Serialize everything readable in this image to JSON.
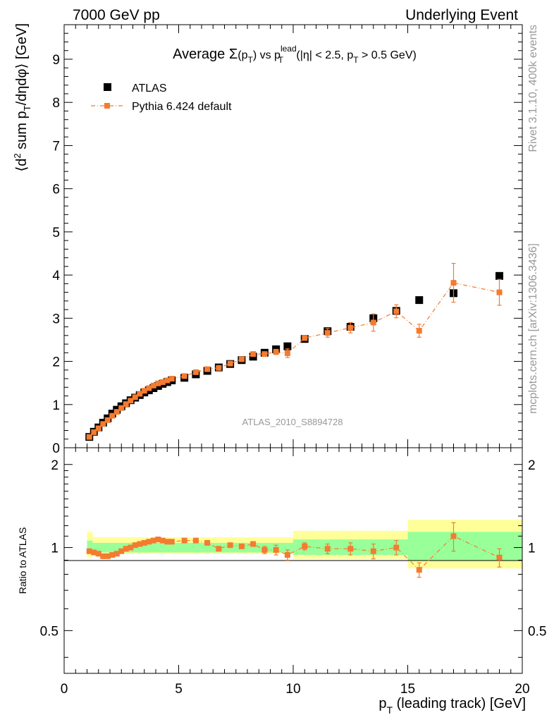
{
  "header": {
    "left": "7000 GeV pp",
    "right": "Underlying Event"
  },
  "side_labels": {
    "rivet": "Rivet 3.1.10,  400k events",
    "mcplots": "mcplots.cern.ch [arXiv:1306.3436]"
  },
  "analysis_label": "ATLAS_2010_S8894728",
  "colors": {
    "atlas": "#000000",
    "pythia": "#f47b30",
    "band_inner": "#99ff99",
    "band_outer": "#ffff99",
    "ratio_label_grey": "#999999"
  },
  "chart_data": [
    {
      "type": "scatter",
      "panel": "main",
      "title_parts": {
        "pre": "Average ",
        "sigma": "Σ",
        "pt_open": "(p",
        "pt_sub": "T",
        "pt_close": ")",
        "vs": " vs p",
        "vs_sup": "lead",
        "vs_sub": "T",
        "cond_a": " (|η| < 2.5, p",
        "cond_sub": "T",
        "cond_b": " > 0.5 GeV)"
      },
      "ylabel_parts": {
        "a": "⟨d",
        "sup": "2",
        "b": " sum p",
        "sub": "T",
        "c": "/dηdφ⟩ [GeV]"
      },
      "xlim": [
        0,
        20
      ],
      "ylim": [
        0,
        9.8
      ],
      "yticks": [
        "0",
        "1",
        "2",
        "3",
        "4",
        "5",
        "6",
        "7",
        "8",
        "9"
      ],
      "legend": {
        "placement": "top-left",
        "atlas": "ATLAS",
        "pythia": "Pythia 6.424 default"
      },
      "series": [
        {
          "name": "ATLAS",
          "marker": "square",
          "x": [
            1.1,
            1.3,
            1.5,
            1.7,
            1.9,
            2.1,
            2.3,
            2.5,
            2.7,
            2.9,
            3.1,
            3.3,
            3.5,
            3.7,
            3.9,
            4.1,
            4.3,
            4.5,
            4.7,
            5.25,
            5.75,
            6.25,
            6.75,
            7.25,
            7.75,
            8.25,
            8.75,
            9.25,
            9.75,
            10.5,
            11.5,
            12.5,
            13.5,
            14.5,
            15.5,
            17.0,
            19.0
          ],
          "y": [
            0.25,
            0.37,
            0.47,
            0.58,
            0.68,
            0.79,
            0.88,
            0.96,
            1.03,
            1.1,
            1.16,
            1.22,
            1.28,
            1.33,
            1.38,
            1.43,
            1.48,
            1.52,
            1.56,
            1.62,
            1.7,
            1.78,
            1.86,
            1.94,
            2.03,
            2.11,
            2.2,
            2.28,
            2.35,
            2.52,
            2.7,
            2.8,
            3.0,
            3.17,
            3.42,
            3.58,
            3.98
          ]
        },
        {
          "name": "Pythia 6.424 default",
          "marker": "square",
          "x": [
            1.1,
            1.3,
            1.5,
            1.7,
            1.9,
            2.1,
            2.3,
            2.5,
            2.7,
            2.9,
            3.1,
            3.3,
            3.5,
            3.7,
            3.9,
            4.1,
            4.3,
            4.5,
            4.7,
            5.25,
            5.75,
            6.25,
            6.75,
            7.25,
            7.75,
            8.25,
            8.75,
            9.25,
            9.75,
            10.5,
            11.5,
            12.5,
            13.5,
            14.5,
            15.5,
            17.0,
            19.0
          ],
          "y": [
            0.25,
            0.36,
            0.45,
            0.55,
            0.64,
            0.74,
            0.83,
            0.92,
            1.01,
            1.09,
            1.17,
            1.25,
            1.32,
            1.38,
            1.44,
            1.49,
            1.52,
            1.56,
            1.6,
            1.66,
            1.75,
            1.82,
            1.85,
            1.95,
            2.05,
            2.17,
            2.17,
            2.22,
            2.19,
            2.54,
            2.66,
            2.78,
            2.9,
            3.16,
            2.71,
            3.82,
            3.6
          ],
          "err": [
            0,
            0,
            0,
            0,
            0,
            0,
            0,
            0,
            0,
            0,
            0,
            0,
            0,
            0,
            0,
            0,
            0,
            0,
            0,
            0,
            0,
            0,
            0,
            0,
            0,
            0,
            0.04,
            0.06,
            0.1,
            0.05,
            0.1,
            0.12,
            0.2,
            0.15,
            0.15,
            0.45,
            0.3
          ]
        }
      ]
    },
    {
      "type": "scatter",
      "panel": "ratio",
      "ylabel": "Ratio to ATLAS",
      "xlabel_parts": {
        "a": "p",
        "sub": "T",
        "b": " (leading track) [GeV]"
      },
      "xlim": [
        0,
        20
      ],
      "ylim": [
        0.35,
        2.3
      ],
      "log_y": true,
      "xticks": [
        "0",
        "5",
        "10",
        "15",
        "20"
      ],
      "yticks": [
        "0.5",
        "1",
        "2"
      ],
      "bands": [
        {
          "x0": 1.0,
          "x1": 1.25,
          "inner": [
            0.95,
            1.06
          ],
          "outer": [
            0.92,
            1.14
          ]
        },
        {
          "x0": 1.25,
          "x1": 10.0,
          "inner": [
            0.96,
            1.04
          ],
          "outer": [
            0.95,
            1.09
          ]
        },
        {
          "x0": 10.0,
          "x1": 15.0,
          "inner": [
            0.94,
            1.07
          ],
          "outer": [
            0.91,
            1.15
          ]
        },
        {
          "x0": 15.0,
          "x1": 20.0,
          "inner": [
            0.9,
            1.14
          ],
          "outer": [
            0.84,
            1.26
          ]
        }
      ],
      "x": [
        1.1,
        1.3,
        1.5,
        1.7,
        1.9,
        2.1,
        2.3,
        2.5,
        2.7,
        2.9,
        3.1,
        3.3,
        3.5,
        3.7,
        3.9,
        4.1,
        4.3,
        4.5,
        4.7,
        5.25,
        5.75,
        6.25,
        6.75,
        7.25,
        7.75,
        8.25,
        8.75,
        9.25,
        9.75,
        10.5,
        11.5,
        12.5,
        13.5,
        14.5,
        15.5,
        17.0,
        19.0
      ],
      "y": [
        0.97,
        0.96,
        0.95,
        0.93,
        0.93,
        0.94,
        0.95,
        0.97,
        0.99,
        1.0,
        1.02,
        1.03,
        1.04,
        1.05,
        1.06,
        1.07,
        1.06,
        1.05,
        1.05,
        1.06,
        1.06,
        1.04,
        0.99,
        1.02,
        1.01,
        1.03,
        0.98,
        0.98,
        0.94,
        1.01,
        0.99,
        0.99,
        0.97,
        1.0,
        0.83,
        1.1,
        0.92
      ],
      "err": [
        0,
        0,
        0,
        0,
        0,
        0,
        0,
        0,
        0,
        0,
        0,
        0,
        0,
        0,
        0,
        0,
        0,
        0,
        0,
        0,
        0,
        0,
        0,
        0,
        0,
        0.02,
        0.03,
        0.04,
        0.04,
        0.03,
        0.04,
        0.05,
        0.06,
        0.06,
        0.05,
        0.13,
        0.07
      ]
    }
  ]
}
